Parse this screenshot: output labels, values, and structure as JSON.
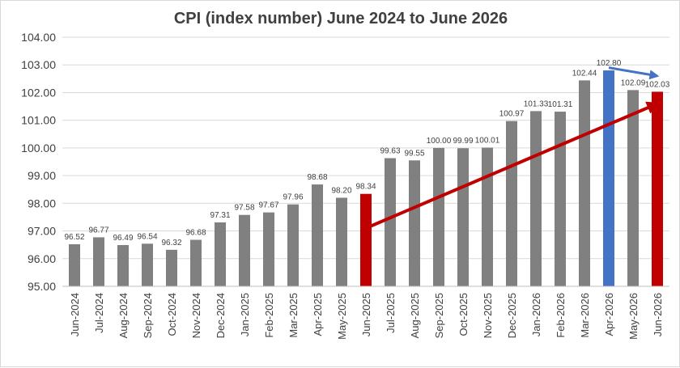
{
  "chart_data": {
    "type": "bar",
    "title": "CPI (index number) June 2024 to June 2026",
    "xlabel": "",
    "ylabel": "",
    "ylim": [
      95.0,
      104.0
    ],
    "ytick_step": 1.0,
    "y_tick_labels": [
      "95.00",
      "96.00",
      "97.00",
      "98.00",
      "99.00",
      "100.00",
      "101.00",
      "102.00",
      "103.00",
      "104.00"
    ],
    "grid": true,
    "legend": "none",
    "categories": [
      "Jun-2024",
      "Jul-2024",
      "Aug-2024",
      "Sep-2024",
      "Oct-2024",
      "Nov-2024",
      "Dec-2024",
      "Jan-2025",
      "Feb-2025",
      "Mar-2025",
      "Apr-2025",
      "May-2025",
      "Jun-2025",
      "Jul-2025",
      "Aug-2025",
      "Sep-2025",
      "Oct-2025",
      "Nov-2025",
      "Dec-2025",
      "Jan-2026",
      "Feb-2026",
      "Mar-2026",
      "Apr-2026",
      "May-2026",
      "Jun-2026"
    ],
    "values": [
      96.52,
      96.77,
      96.49,
      96.54,
      96.32,
      96.68,
      97.31,
      97.58,
      97.67,
      97.96,
      98.68,
      98.2,
      98.34,
      99.63,
      99.55,
      100.0,
      99.99,
      100.01,
      100.97,
      101.33,
      101.31,
      102.44,
      102.8,
      102.09,
      102.03
    ],
    "value_labels": [
      "96.52",
      "96.77",
      "96.49",
      "96.54",
      "96.32",
      "96.68",
      "97.31",
      "97.58",
      "97.67",
      "97.96",
      "98.68",
      "98.20",
      "98.34",
      "99.63",
      "99.55",
      "100.00",
      "99.99",
      "100.01",
      "100.97",
      "101.33",
      "101.31",
      "102.44",
      "102.80",
      "102.09",
      "102.03"
    ],
    "bar_colors": {
      "default": "#808080",
      "highlight_red": "#c00000",
      "highlight_blue": "#4472c4"
    },
    "highlight": {
      "Jun-2025": "highlight_red",
      "Jun-2026": "highlight_red",
      "Apr-2026": "highlight_blue"
    },
    "annotations": [
      {
        "type": "arrow",
        "color": "#c00000",
        "from": {
          "x": "Jun-2025",
          "y": 97.1
        },
        "to": {
          "x": "Jun-2026",
          "y": 101.6
        }
      },
      {
        "type": "arrow",
        "color": "#4472c4",
        "from": {
          "x": "Apr-2026",
          "y": 102.9
        },
        "to": {
          "x": "Jun-2026",
          "y": 102.6
        }
      }
    ]
  }
}
